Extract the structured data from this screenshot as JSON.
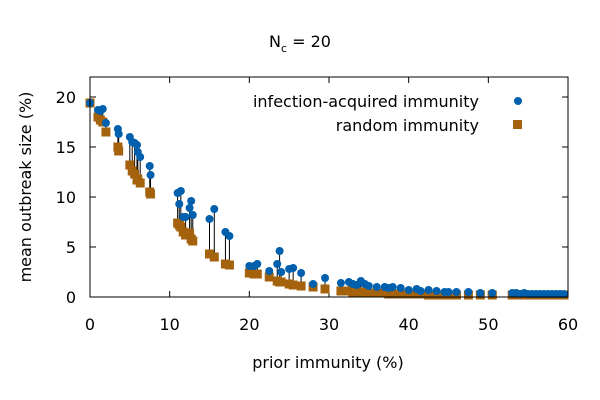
{
  "chart_data": {
    "type": "scatter",
    "title_main": "N",
    "title_sub": "c",
    "title_rest": " = 20",
    "xlabel": "prior immunity (%)",
    "ylabel": "mean outbreak size (%)",
    "xlim": [
      0,
      60
    ],
    "ylim": [
      0,
      22
    ],
    "xticks": [
      0,
      10,
      20,
      30,
      40,
      50,
      60
    ],
    "yticks": [
      0,
      5,
      10,
      15,
      20
    ],
    "legend_position": "top-right",
    "series": [
      {
        "name": "infection-acquired immunity",
        "marker": "circle",
        "color": "#0060ad",
        "points": [
          [
            0,
            19.4
          ],
          [
            1,
            18.7
          ],
          [
            1.3,
            18.6
          ],
          [
            1.6,
            18.8
          ],
          [
            2,
            17.4
          ],
          [
            3.5,
            16.8
          ],
          [
            3.6,
            16.3
          ],
          [
            5,
            16.0
          ],
          [
            5.3,
            15.5
          ],
          [
            5.6,
            15.4
          ],
          [
            5.9,
            15.2
          ],
          [
            6,
            14.5
          ],
          [
            6.3,
            14.0
          ],
          [
            7.5,
            13.1
          ],
          [
            7.6,
            12.2
          ],
          [
            11,
            10.4
          ],
          [
            11.2,
            9.3
          ],
          [
            11.4,
            10.6
          ],
          [
            11.7,
            8.0
          ],
          [
            12,
            8.0
          ],
          [
            12.5,
            8.9
          ],
          [
            12.7,
            9.6
          ],
          [
            12.9,
            8.2
          ],
          [
            15,
            7.8
          ],
          [
            15.6,
            8.8
          ],
          [
            17,
            6.5
          ],
          [
            17.5,
            6.1
          ],
          [
            20,
            3.1
          ],
          [
            20.6,
            3.1
          ],
          [
            21,
            3.3
          ],
          [
            22.5,
            2.6
          ],
          [
            23.5,
            3.3
          ],
          [
            23.8,
            4.6
          ],
          [
            24,
            2.5
          ],
          [
            25,
            2.8
          ],
          [
            25.5,
            2.9
          ],
          [
            26.5,
            2.4
          ],
          [
            28,
            1.3
          ],
          [
            29.5,
            1.9
          ],
          [
            31.5,
            1.4
          ],
          [
            32.5,
            1.5
          ],
          [
            33,
            1.3
          ],
          [
            33.5,
            1.2
          ],
          [
            34,
            1.6
          ],
          [
            34.5,
            1.3
          ],
          [
            35,
            1.1
          ],
          [
            36,
            1.0
          ],
          [
            37,
            1.0
          ],
          [
            37.5,
            0.9
          ],
          [
            38,
            1.0
          ],
          [
            39,
            0.9
          ],
          [
            40,
            0.7
          ],
          [
            41,
            0.8
          ],
          [
            41.5,
            0.6
          ],
          [
            42.5,
            0.7
          ],
          [
            43.5,
            0.6
          ],
          [
            44.5,
            0.5
          ],
          [
            45,
            0.5
          ],
          [
            46,
            0.5
          ],
          [
            47.5,
            0.5
          ],
          [
            49,
            0.4
          ],
          [
            50.5,
            0.4
          ],
          [
            53,
            0.4
          ],
          [
            53.5,
            0.4
          ],
          [
            54,
            0.3
          ],
          [
            54.5,
            0.4
          ],
          [
            55,
            0.3
          ],
          [
            55.5,
            0.3
          ],
          [
            56,
            0.3
          ],
          [
            56.5,
            0.3
          ],
          [
            57,
            0.3
          ],
          [
            57.5,
            0.3
          ],
          [
            58,
            0.3
          ],
          [
            58.5,
            0.3
          ],
          [
            59,
            0.3
          ],
          [
            59.5,
            0.3
          ]
        ]
      },
      {
        "name": "random immunity",
        "marker": "square",
        "color": "#a5620c",
        "points": [
          [
            0,
            19.4
          ],
          [
            1,
            18.0
          ],
          [
            1.3,
            17.7
          ],
          [
            1.6,
            17.5
          ],
          [
            2,
            16.5
          ],
          [
            3.5,
            15.0
          ],
          [
            3.6,
            14.6
          ],
          [
            5,
            13.2
          ],
          [
            5.3,
            12.6
          ],
          [
            5.6,
            12.3
          ],
          [
            5.9,
            11.7
          ],
          [
            6,
            11.8
          ],
          [
            6.3,
            11.4
          ],
          [
            7.5,
            10.5
          ],
          [
            7.6,
            10.3
          ],
          [
            11,
            7.4
          ],
          [
            11.2,
            7.2
          ],
          [
            11.4,
            7.0
          ],
          [
            11.7,
            6.5
          ],
          [
            12,
            6.2
          ],
          [
            12.5,
            6.4
          ],
          [
            12.7,
            5.8
          ],
          [
            12.9,
            5.6
          ],
          [
            15,
            4.3
          ],
          [
            15.6,
            4.0
          ],
          [
            17,
            3.3
          ],
          [
            17.5,
            3.2
          ],
          [
            20,
            2.4
          ],
          [
            20.6,
            2.3
          ],
          [
            21,
            2.3
          ],
          [
            22.5,
            2.0
          ],
          [
            23.5,
            1.6
          ],
          [
            23.8,
            1.5
          ],
          [
            24,
            1.5
          ],
          [
            25,
            1.3
          ],
          [
            25.5,
            1.2
          ],
          [
            26.5,
            1.1
          ],
          [
            28,
            1.0
          ],
          [
            29.5,
            0.8
          ],
          [
            31.5,
            0.6
          ],
          [
            32.5,
            0.6
          ],
          [
            33,
            0.5
          ],
          [
            33.5,
            0.5
          ],
          [
            34,
            0.5
          ],
          [
            34.5,
            0.5
          ],
          [
            35,
            0.4
          ],
          [
            36,
            0.4
          ],
          [
            37,
            0.4
          ],
          [
            37.5,
            0.3
          ],
          [
            38,
            0.3
          ],
          [
            39,
            0.3
          ],
          [
            40,
            0.3
          ],
          [
            41,
            0.3
          ],
          [
            41.5,
            0.3
          ],
          [
            42.5,
            0.2
          ],
          [
            43.5,
            0.2
          ],
          [
            44.5,
            0.2
          ],
          [
            45,
            0.2
          ],
          [
            46,
            0.2
          ],
          [
            47.5,
            0.2
          ],
          [
            49,
            0.2
          ],
          [
            50.5,
            0.2
          ],
          [
            53,
            0.2
          ],
          [
            53.5,
            0.2
          ],
          [
            54,
            0.2
          ],
          [
            54.5,
            0.2
          ],
          [
            55,
            0.2
          ],
          [
            55.5,
            0.2
          ],
          [
            56,
            0.2
          ],
          [
            56.5,
            0.2
          ],
          [
            57,
            0.2
          ],
          [
            57.5,
            0.2
          ],
          [
            58,
            0.2
          ],
          [
            58.5,
            0.2
          ],
          [
            59,
            0.2
          ],
          [
            59.5,
            0.2
          ]
        ]
      }
    ]
  }
}
